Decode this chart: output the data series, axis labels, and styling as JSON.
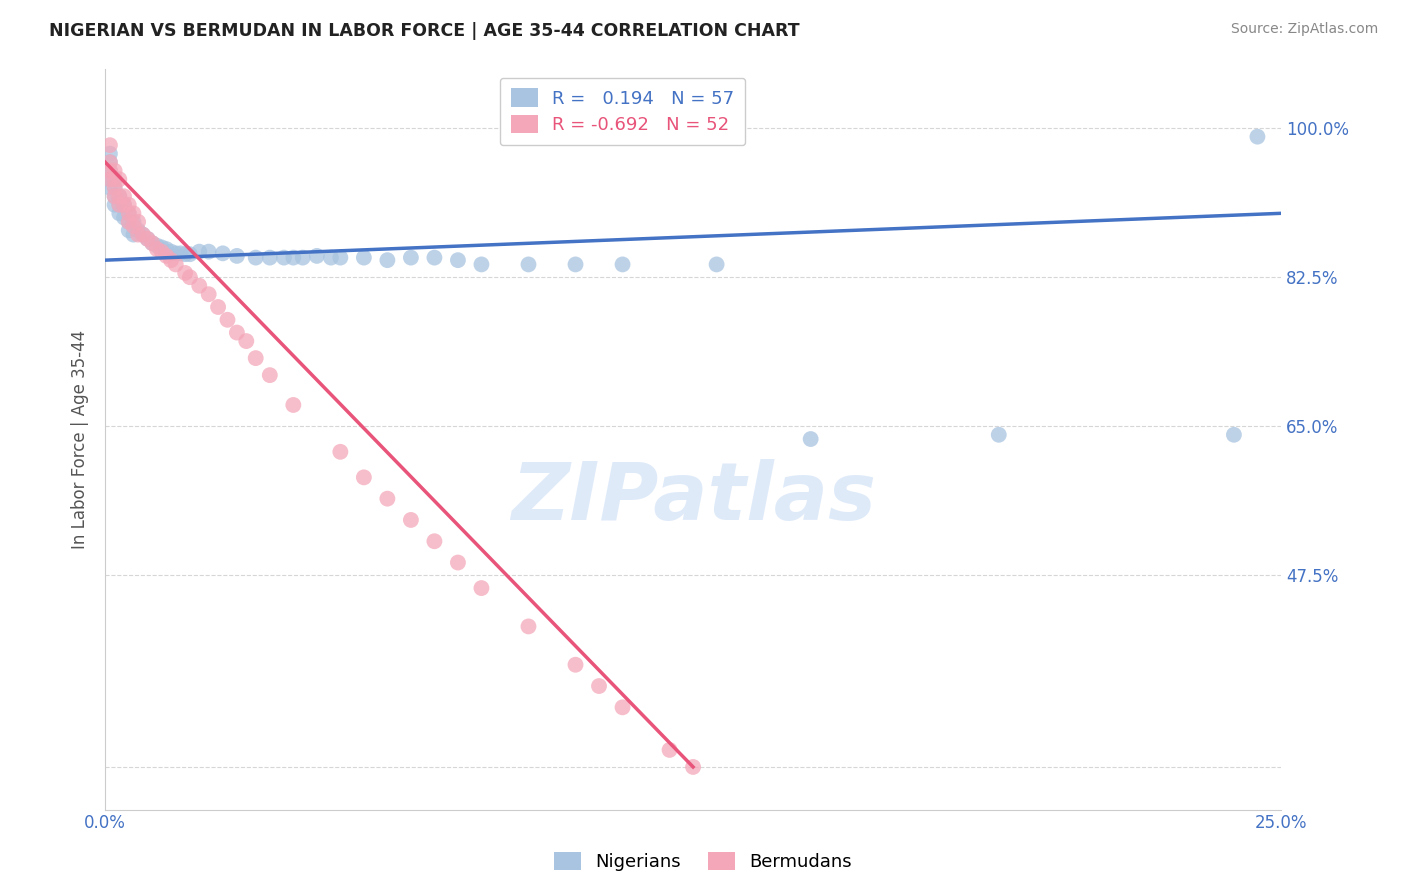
{
  "title": "NIGERIAN VS BERMUDAN IN LABOR FORCE | AGE 35-44 CORRELATION CHART",
  "source_text": "Source: ZipAtlas.com",
  "ylabel": "In Labor Force | Age 35-44",
  "xlim": [
    0.0,
    0.25
  ],
  "ylim": [
    0.2,
    1.07
  ],
  "ytick_positions": [
    0.25,
    0.475,
    0.65,
    0.825,
    1.0
  ],
  "ytick_labels": [
    "",
    "47.5%",
    "65.0%",
    "82.5%",
    "100.0%"
  ],
  "xtick_pos": [
    0.0,
    0.025,
    0.05,
    0.075,
    0.1,
    0.125,
    0.15,
    0.175,
    0.2,
    0.225,
    0.25
  ],
  "xticklabels_first": "0.0%",
  "xticklabels_last": "25.0%",
  "legend_label_blue": "R =   0.194   N = 57",
  "legend_label_pink": "R = -0.692   N = 52",
  "nigerian_x": [
    0.001,
    0.001,
    0.001,
    0.001,
    0.001,
    0.002,
    0.002,
    0.002,
    0.002,
    0.003,
    0.003,
    0.003,
    0.004,
    0.004,
    0.005,
    0.005,
    0.005,
    0.006,
    0.006,
    0.007,
    0.008,
    0.009,
    0.01,
    0.011,
    0.012,
    0.013,
    0.014,
    0.015,
    0.016,
    0.017,
    0.018,
    0.02,
    0.022,
    0.025,
    0.028,
    0.032,
    0.035,
    0.038,
    0.04,
    0.042,
    0.045,
    0.048,
    0.05,
    0.055,
    0.06,
    0.065,
    0.07,
    0.075,
    0.08,
    0.09,
    0.1,
    0.11,
    0.13,
    0.15,
    0.19,
    0.24,
    0.245
  ],
  "nigerian_y": [
    0.97,
    0.96,
    0.95,
    0.94,
    0.93,
    0.94,
    0.93,
    0.92,
    0.91,
    0.92,
    0.91,
    0.9,
    0.91,
    0.895,
    0.9,
    0.89,
    0.88,
    0.89,
    0.875,
    0.88,
    0.875,
    0.87,
    0.865,
    0.862,
    0.86,
    0.858,
    0.855,
    0.853,
    0.853,
    0.852,
    0.852,
    0.855,
    0.855,
    0.853,
    0.85,
    0.848,
    0.848,
    0.848,
    0.848,
    0.848,
    0.85,
    0.848,
    0.848,
    0.848,
    0.845,
    0.848,
    0.848,
    0.845,
    0.84,
    0.84,
    0.84,
    0.84,
    0.84,
    0.635,
    0.64,
    0.64,
    0.99
  ],
  "nigerian_line_x": [
    0.0,
    0.25
  ],
  "nigerian_line_y": [
    0.845,
    0.9
  ],
  "bermudan_x": [
    0.001,
    0.001,
    0.001,
    0.001,
    0.002,
    0.002,
    0.002,
    0.002,
    0.003,
    0.003,
    0.003,
    0.004,
    0.004,
    0.005,
    0.005,
    0.005,
    0.006,
    0.006,
    0.007,
    0.007,
    0.008,
    0.009,
    0.01,
    0.011,
    0.012,
    0.013,
    0.014,
    0.015,
    0.017,
    0.018,
    0.02,
    0.022,
    0.024,
    0.026,
    0.028,
    0.03,
    0.032,
    0.035,
    0.04,
    0.05,
    0.055,
    0.06,
    0.065,
    0.07,
    0.075,
    0.08,
    0.09,
    0.1,
    0.105,
    0.11,
    0.12,
    0.125
  ],
  "bermudan_y": [
    0.98,
    0.96,
    0.95,
    0.94,
    0.95,
    0.94,
    0.93,
    0.92,
    0.94,
    0.92,
    0.91,
    0.92,
    0.91,
    0.91,
    0.9,
    0.89,
    0.9,
    0.885,
    0.89,
    0.875,
    0.875,
    0.87,
    0.865,
    0.858,
    0.855,
    0.85,
    0.845,
    0.84,
    0.83,
    0.825,
    0.815,
    0.805,
    0.79,
    0.775,
    0.76,
    0.75,
    0.73,
    0.71,
    0.675,
    0.62,
    0.59,
    0.565,
    0.54,
    0.515,
    0.49,
    0.46,
    0.415,
    0.37,
    0.345,
    0.32,
    0.27,
    0.25
  ],
  "bermudan_line_x": [
    0.0,
    0.125
  ],
  "bermudan_line_y": [
    0.96,
    0.25
  ],
  "bermudan_outlier_x": [
    0.12
  ],
  "bermudan_outlier_y": [
    0.25
  ],
  "dot_color_nigerian": "#a8c4e0",
  "dot_color_bermudan": "#f4a7b9",
  "line_color_nigerian": "#4472c4",
  "line_color_bermudan": "#e8547a",
  "dot_size": 130,
  "dot_alpha": 0.75,
  "watermark": "ZIPatlas",
  "watermark_color": "#c5daf5",
  "background_color": "#ffffff",
  "grid_color": "#bbbbbb",
  "title_color": "#222222",
  "axis_label_color": "#555555",
  "tick_label_color": "#4472c4",
  "source_color": "#888888"
}
